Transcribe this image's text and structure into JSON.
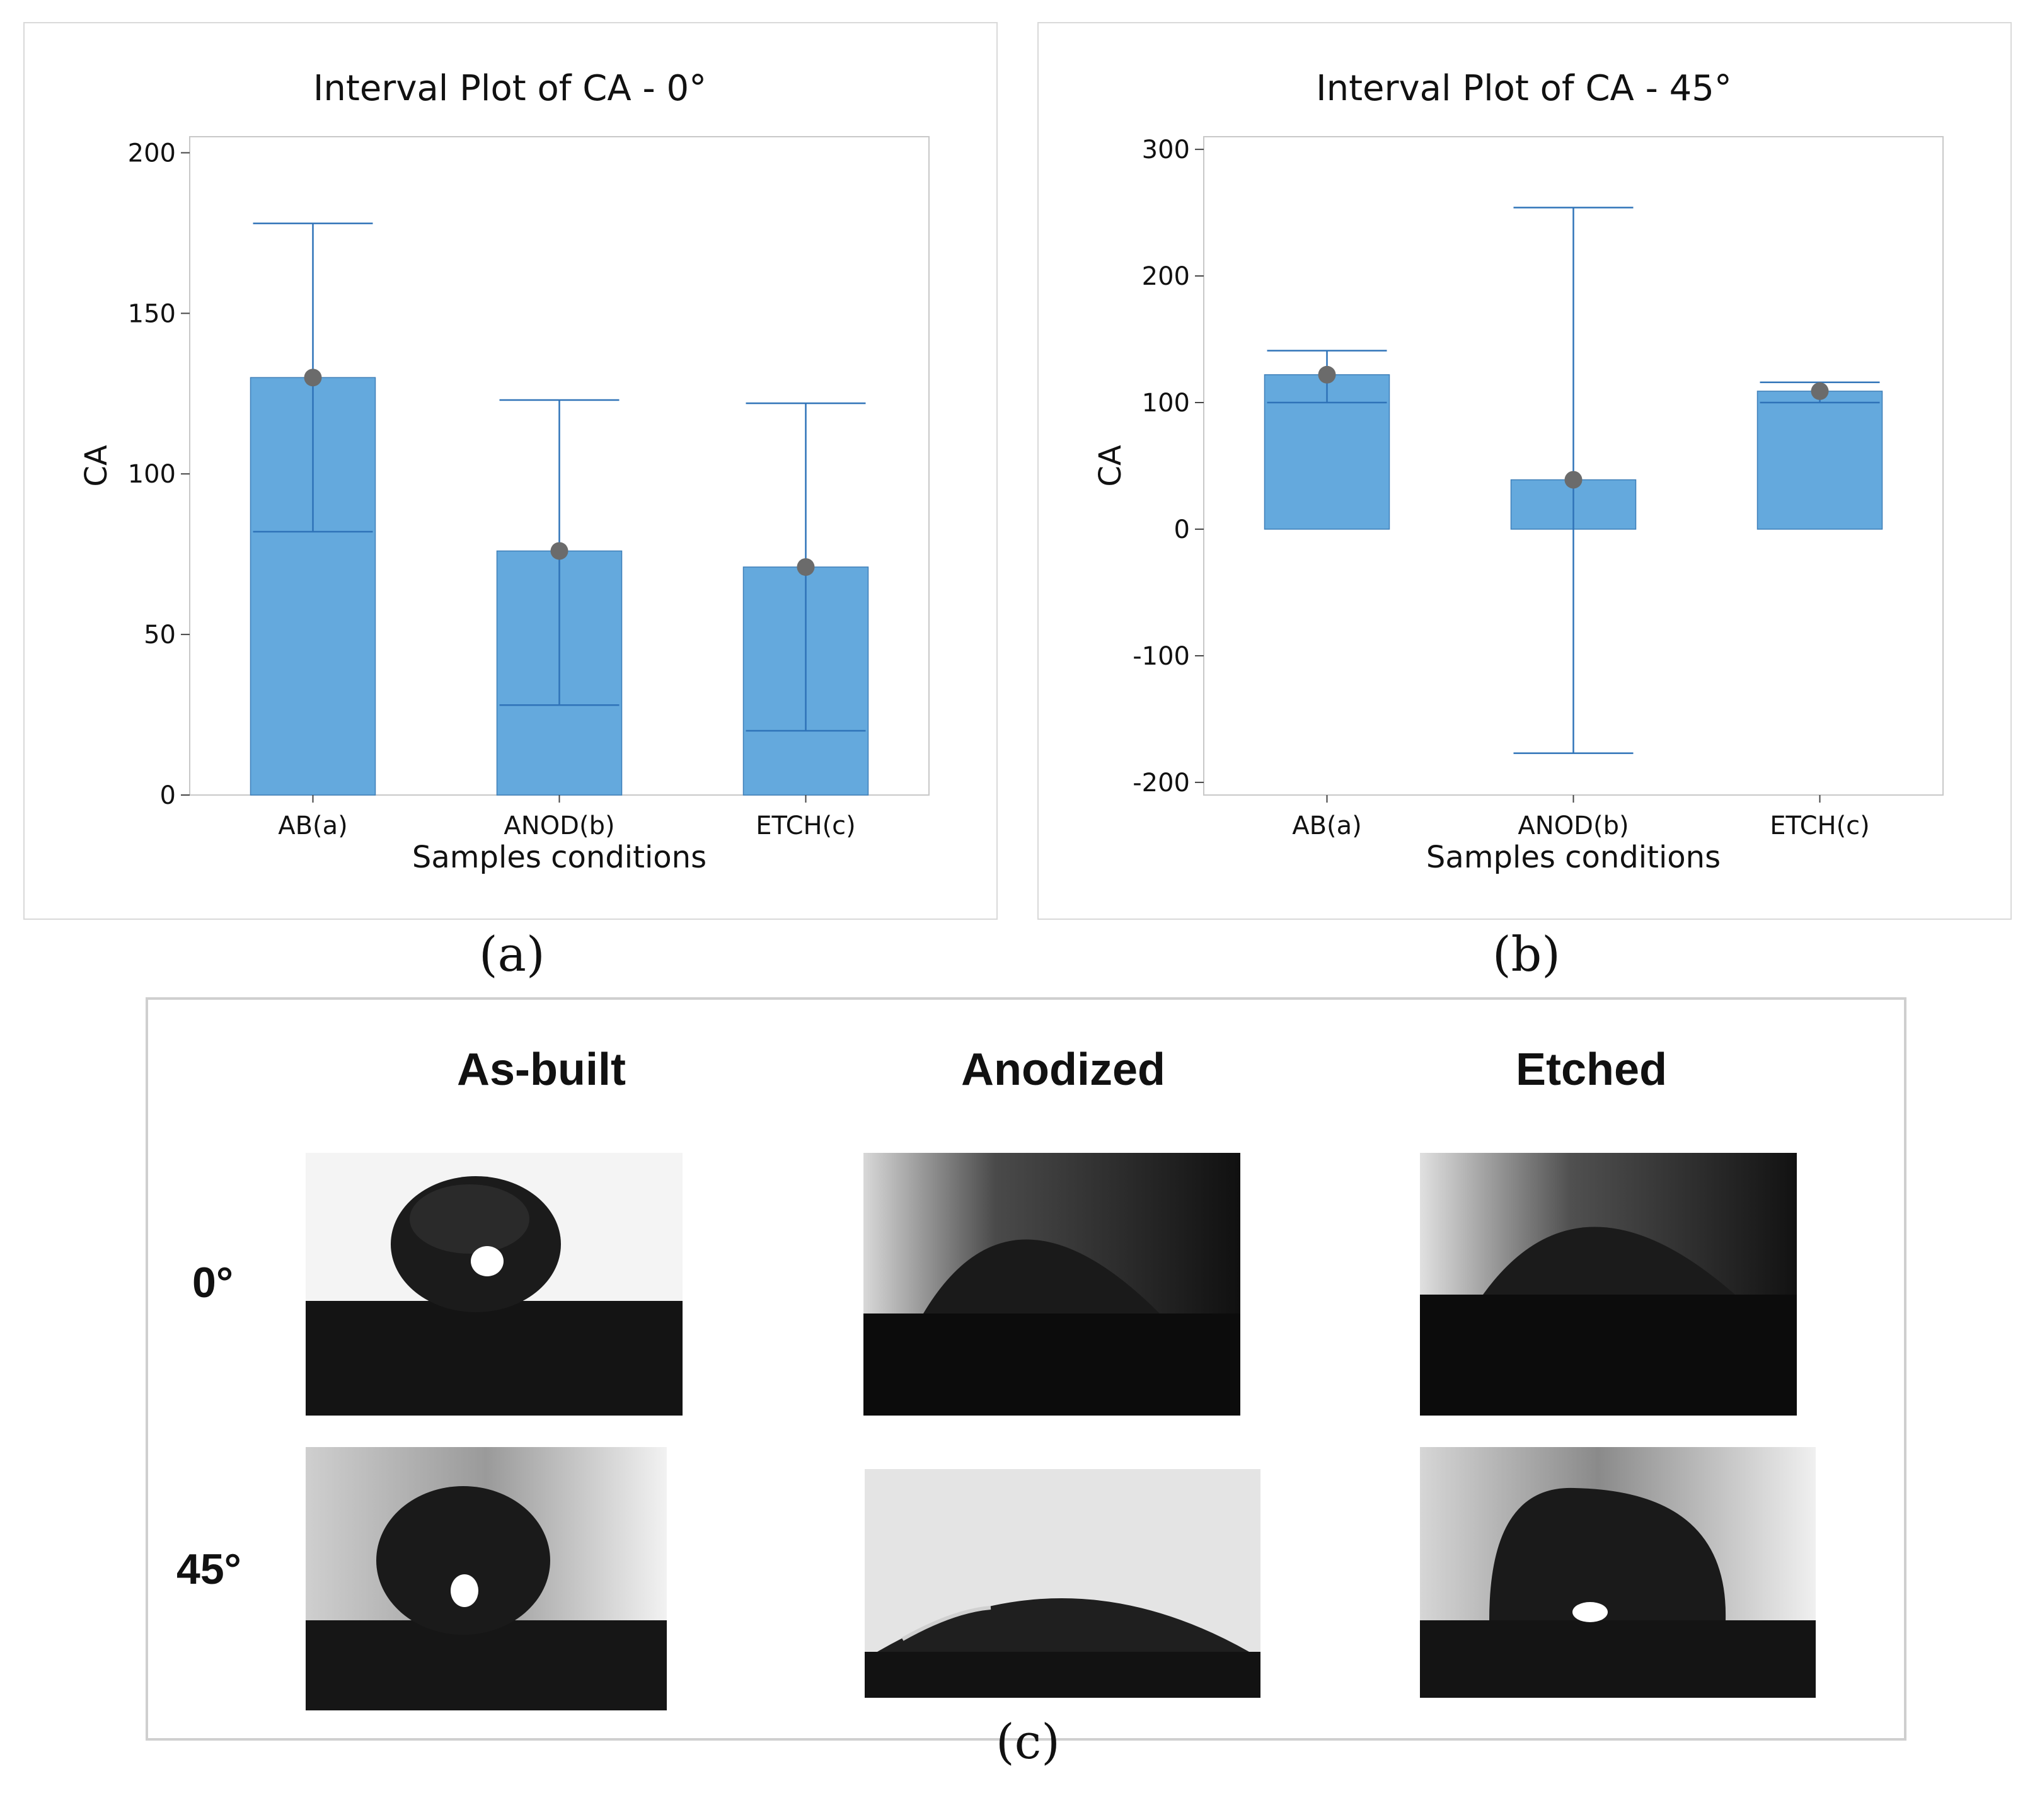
{
  "chart_data": [
    {
      "type": "interval",
      "panel": "a",
      "title": "Interval Plot of CA - 0°",
      "xlabel": "Samples conditions",
      "ylabel": "CA",
      "categories": [
        "AB(a)",
        "ANOD(b)",
        "ETCH(c)"
      ],
      "values": [
        130,
        76,
        71
      ],
      "ci_low": [
        82,
        28,
        20
      ],
      "ci_high": [
        178,
        123,
        122
      ],
      "ylim": [
        0,
        205
      ],
      "yticks": [
        0,
        50,
        100,
        150,
        200
      ],
      "bar_color": "#64a9dd",
      "point_color": "#6b6b6b",
      "whisker_color": "#2f73b8"
    },
    {
      "type": "interval",
      "panel": "b",
      "title": "Interval Plot of CA - 45°",
      "xlabel": "Samples conditions",
      "ylabel": "CA",
      "categories": [
        "AB(a)",
        "ANOD(b)",
        "ETCH(c)"
      ],
      "values": [
        122,
        39,
        109
      ],
      "ci_low": [
        100,
        -177,
        100
      ],
      "ci_high": [
        141,
        254,
        116
      ],
      "ylim": [
        -210,
        310
      ],
      "yticks": [
        -200,
        -100,
        0,
        100,
        200,
        300
      ],
      "bar_color": "#64a9dd",
      "point_color": "#6b6b6b",
      "whisker_color": "#2f73b8"
    }
  ],
  "captions": {
    "a": "(a)",
    "b": "(b)",
    "c": "(c)"
  },
  "photos": {
    "columns": [
      "As-built",
      "Anodized",
      "Etched"
    ],
    "rows": [
      "0°",
      "45°"
    ]
  }
}
